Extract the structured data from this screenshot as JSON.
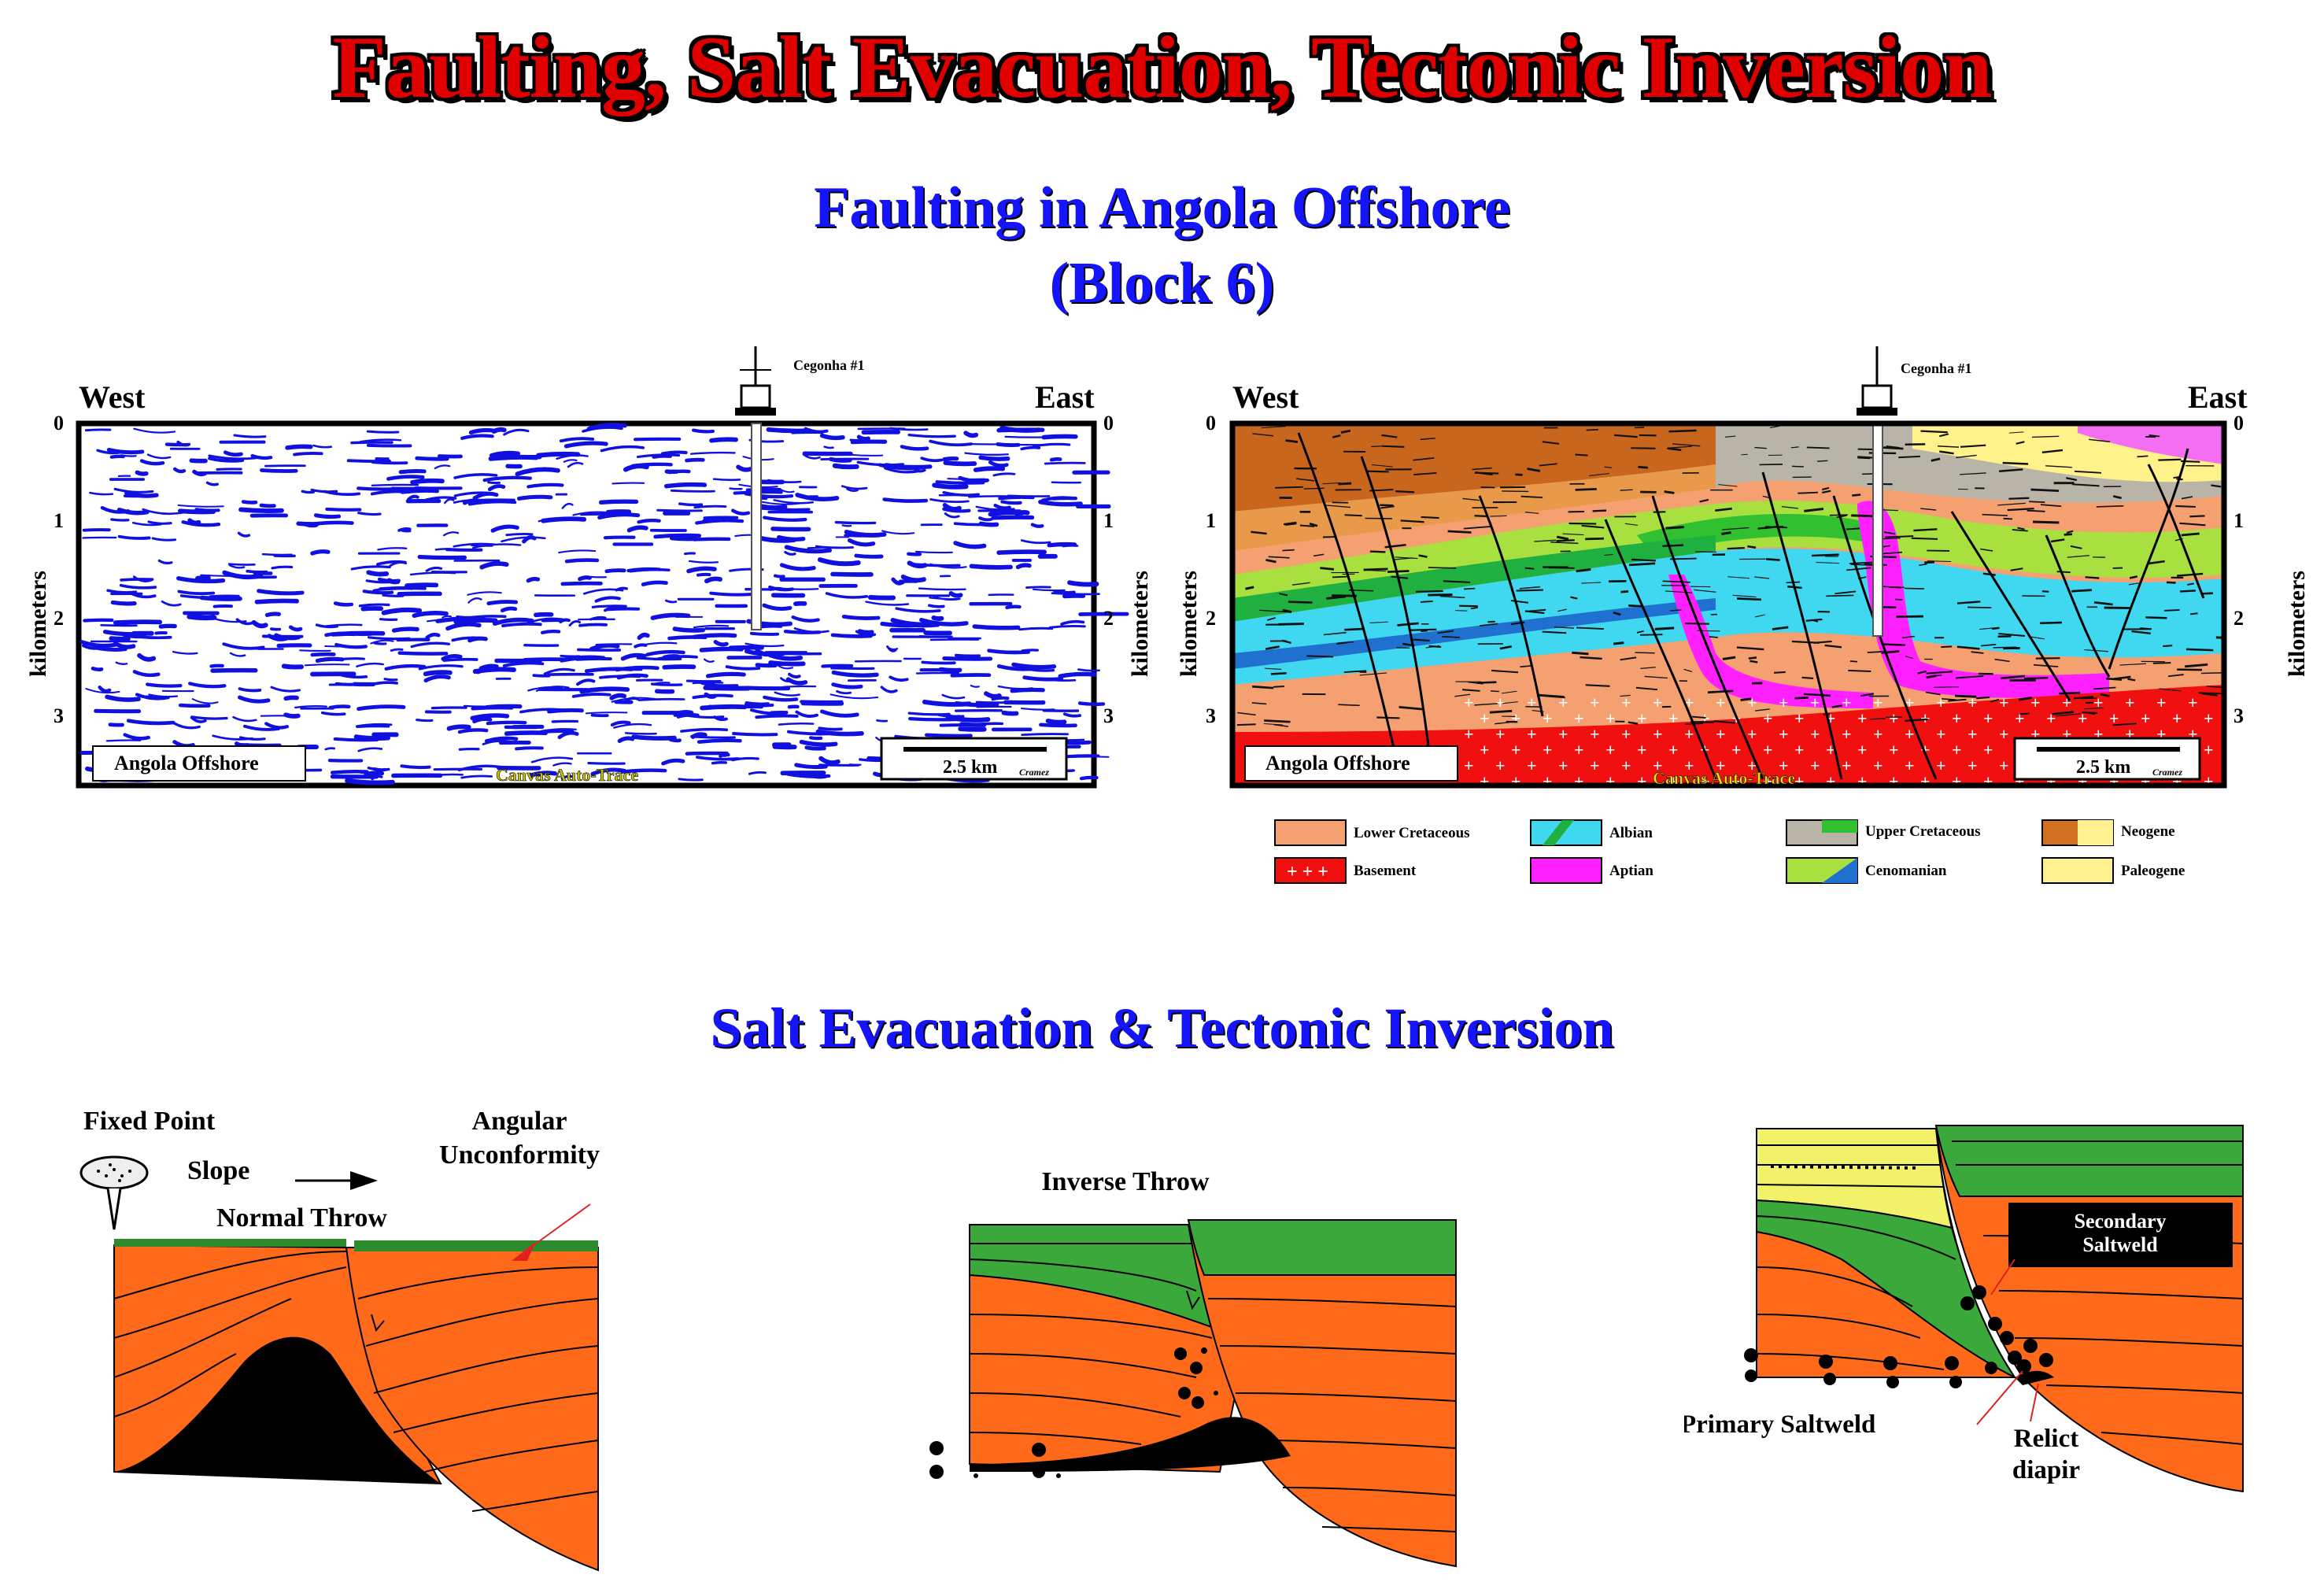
{
  "title": "Faulting, Salt Evacuation, Tectonic Inversion",
  "section1": {
    "title_line1": "Faulting in Angola Offshore",
    "title_line2": "(Block 6)"
  },
  "seismic_left": {
    "west": "West",
    "east": "East",
    "well": "Cegonha #1",
    "axis_label": "kilometers",
    "ticks": [
      "0",
      "1",
      "2",
      "3"
    ],
    "location": "Angola Offshore",
    "trace_label": "Canvas Auto-Trace",
    "scale": "2.5 km",
    "author": "Cramez",
    "colors": {
      "reflector": "#1010e0"
    }
  },
  "seismic_right": {
    "west": "West",
    "east": "East",
    "well": "Cegonha #1",
    "axis_label": "kilometers",
    "ticks": [
      "0",
      "1",
      "2",
      "3"
    ],
    "location": "Angola Offshore",
    "trace_label": "Canvas Auto-Trace",
    "scale": "2.5 km",
    "author": "Cramez"
  },
  "legend": [
    {
      "label": "Lower Cretaceous",
      "color": "#f4a070"
    },
    {
      "label": "Albian",
      "color": "#40e0f0"
    },
    {
      "label": "Upper Cretaceous",
      "color": "#b0b0a8"
    },
    {
      "label": "Neogene",
      "color": "#d07020"
    },
    {
      "label": "Basement",
      "color": "#f01010"
    },
    {
      "label": "Aptian",
      "color": "#ff20ff"
    },
    {
      "label": "Cenomanian",
      "color": "#a8e040"
    },
    {
      "label": "Paleogene",
      "color": "#fff090"
    }
  ],
  "section2": {
    "title": "Salt Evacuation & Tectonic Inversion"
  },
  "diagram1": {
    "fixed_point": "Fixed Point",
    "slope": "Slope",
    "normal_throw": "Normal Throw",
    "angular_line1": "Angular",
    "angular_line2": "Unconformity"
  },
  "diagram2": {
    "inverse_throw": "Inverse Throw"
  },
  "diagram3": {
    "secondary_line1": "Secondary",
    "secondary_line2": "Saltweld",
    "primary": "Primary Saltweld",
    "relict_line1": "Relict",
    "relict_line2": "diapir"
  },
  "colors": {
    "orange": "#ff6a1a",
    "green": "#3aa83a",
    "yellow": "#f2f26a",
    "salt": "#000000"
  }
}
